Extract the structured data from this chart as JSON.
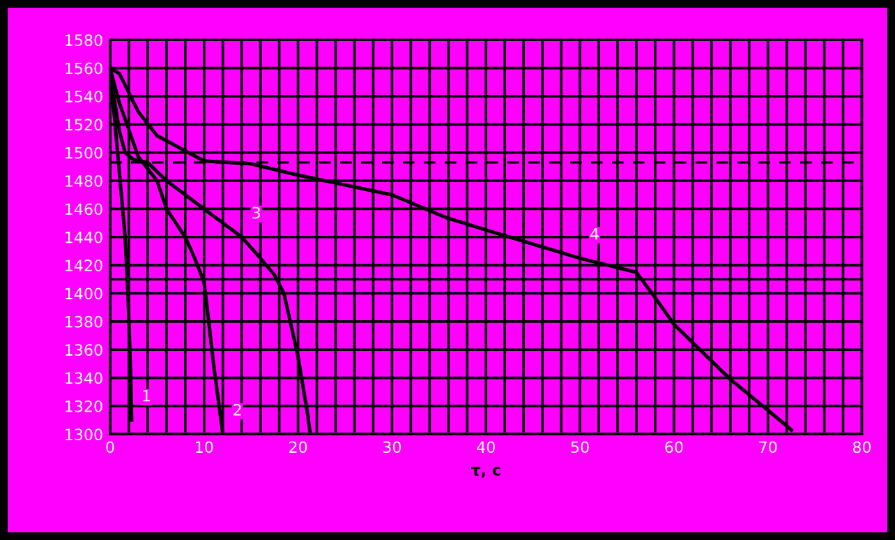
{
  "chart_data": {
    "type": "line",
    "xlabel": "τ, c",
    "xlim": [
      0,
      80
    ],
    "ylim": [
      1300,
      1580
    ],
    "xticks": [
      0,
      {
        "value": 2,
        "label": null
      },
      {
        "value": 4,
        "label": null
      },
      {
        "value": 6,
        "label": null
      },
      {
        "value": 8,
        "label": null
      },
      10,
      {
        "value": 12,
        "label": null
      },
      {
        "value": 14,
        "label": null
      },
      {
        "value": 16,
        "label": null
      },
      {
        "value": 18,
        "label": null
      },
      20,
      {
        "value": 22,
        "label": null
      },
      {
        "value": 24,
        "label": null
      },
      {
        "value": 26,
        "label": null
      },
      {
        "value": 28,
        "label": null
      },
      30,
      {
        "value": 32,
        "label": null
      },
      {
        "value": 34,
        "label": null
      },
      {
        "value": 36,
        "label": null
      },
      {
        "value": 38,
        "label": null
      },
      40,
      {
        "value": 42,
        "label": null
      },
      {
        "value": 44,
        "label": null
      },
      {
        "value": 46,
        "label": null
      },
      {
        "value": 48,
        "label": null
      },
      50,
      {
        "value": 52,
        "label": null
      },
      {
        "value": 54,
        "label": null
      },
      {
        "value": 56,
        "label": null
      },
      {
        "value": 58,
        "label": null
      },
      60,
      {
        "value": 62,
        "label": null
      },
      {
        "value": 64,
        "label": null
      },
      {
        "value": 66,
        "label": null
      },
      {
        "value": 68,
        "label": null
      },
      70,
      {
        "value": 72,
        "label": null
      },
      {
        "value": 74,
        "label": null
      },
      {
        "value": 76,
        "label": null
      },
      {
        "value": 78,
        "label": null
      },
      80
    ],
    "yticks": [
      1300,
      1320,
      1340,
      1360,
      1380,
      1400,
      1420,
      1440,
      1460,
      1480,
      1500,
      1520,
      1540,
      1560,
      1580
    ],
    "grid": true,
    "marker": "none",
    "line_style": "solid",
    "series": [
      {
        "color": "#000000",
        "x": [
          0,
          0.8,
          1.6,
          1.9,
          2.2,
          2.3
        ],
        "values": [
          1560,
          1500,
          1440,
          1400,
          1340,
          1310
        ]
      },
      {
        "color": "#000000",
        "x": [
          0,
          1,
          1.8,
          3,
          5,
          6,
          8,
          9,
          10,
          10.5,
          11,
          11.5,
          12
        ],
        "values": [
          1560,
          1535,
          1520,
          1497,
          1480,
          1460,
          1440,
          1425,
          1408,
          1380,
          1350,
          1325,
          1300
        ]
      },
      {
        "color": "#000000",
        "x": [
          0,
          0.4,
          1,
          1.6,
          2.5,
          4,
          6,
          10,
          14,
          16,
          17.5,
          18.5,
          19.5,
          20,
          20.5,
          21,
          21.3
        ],
        "values": [
          1560,
          1540,
          1515,
          1500,
          1495,
          1493,
          1480,
          1460,
          1440,
          1425,
          1413,
          1400,
          1370,
          1355,
          1335,
          1315,
          1300
        ]
      },
      {
        "color": "#000000",
        "x": [
          0,
          1,
          3,
          5,
          10,
          15,
          20,
          25,
          30,
          35.7,
          40,
          50,
          56,
          58,
          60,
          62,
          66,
          70,
          72.5
        ],
        "values": [
          1560,
          1556,
          1529,
          1512,
          1494,
          1492,
          1484,
          1477,
          1470,
          1454,
          1445,
          1425,
          1415,
          1397,
          1378,
          1365,
          1339,
          1317,
          1303
        ]
      }
    ],
    "ref_lines": [
      {
        "axis": "y",
        "value": 1493,
        "label": null,
        "color": "#000000",
        "line_style": "dashed"
      },
      {
        "axis": "y",
        "value": 1410,
        "label": null,
        "color": "#000000",
        "line_style": "solid"
      }
    ],
    "annotations": [
      {
        "text": "1",
        "x": 2.3,
        "y": 1310
      },
      {
        "text": "2",
        "x": 12,
        "y": 1300
      },
      {
        "text": "3",
        "x": 14,
        "y": 1440
      },
      {
        "text": "4",
        "x": 50,
        "y": 1425
      }
    ]
  }
}
